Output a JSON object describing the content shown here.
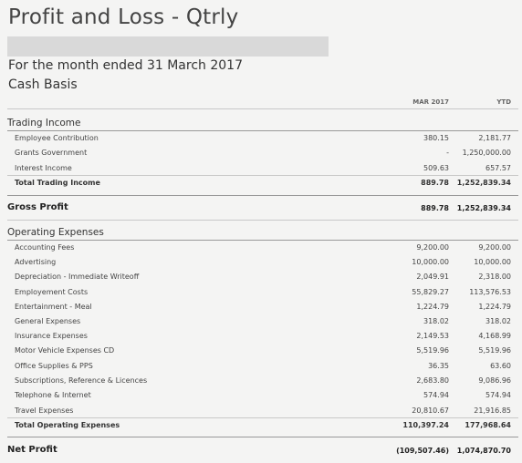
{
  "report": {
    "title": "Profit and Loss - Qtrly",
    "period": "For the month ended 31 March 2017",
    "basis": "Cash Basis",
    "col_month": "MAR 2017",
    "col_ytd": "YTD"
  },
  "trading_income": {
    "heading": "Trading Income",
    "rows": [
      {
        "label": "Employee Contribution",
        "month": "380.15",
        "ytd": "2,181.77"
      },
      {
        "label": "Grants Government",
        "month": "-",
        "ytd": "1,250,000.00"
      },
      {
        "label": "Interest Income",
        "month": "509.63",
        "ytd": "657.57"
      }
    ],
    "total": {
      "label": "Total Trading Income",
      "month": "889.78",
      "ytd": "1,252,839.34"
    }
  },
  "gross_profit": {
    "label": "Gross Profit",
    "month": "889.78",
    "ytd": "1,252,839.34"
  },
  "operating_expenses": {
    "heading": "Operating Expenses",
    "rows": [
      {
        "label": "Accounting Fees",
        "month": "9,200.00",
        "ytd": "9,200.00"
      },
      {
        "label": "Advertising",
        "month": "10,000.00",
        "ytd": "10,000.00"
      },
      {
        "label": "Depreciation - Immediate Writeoff",
        "month": "2,049.91",
        "ytd": "2,318.00"
      },
      {
        "label": "Employement Costs",
        "month": "55,829.27",
        "ytd": "113,576.53"
      },
      {
        "label": "Entertainment - Meal",
        "month": "1,224.79",
        "ytd": "1,224.79"
      },
      {
        "label": "General Expenses",
        "month": "318.02",
        "ytd": "318.02"
      },
      {
        "label": "Insurance Expenses",
        "month": "2,149.53",
        "ytd": "4,168.99"
      },
      {
        "label": "Motor Vehicle Expenses CD",
        "month": "5,519.96",
        "ytd": "5,519.96"
      },
      {
        "label": "Office Supplies & PPS",
        "month": "36.35",
        "ytd": "63.60"
      },
      {
        "label": "Subscriptions, Reference & Licences",
        "month": "2,683.80",
        "ytd": "9,086.96"
      },
      {
        "label": "Telephone & Internet",
        "month": "574.94",
        "ytd": "574.94"
      },
      {
        "label": "Travel Expenses",
        "month": "20,810.67",
        "ytd": "21,916.85"
      }
    ],
    "total": {
      "label": "Total Operating Expenses",
      "month": "110,397.24",
      "ytd": "177,968.64"
    }
  },
  "net_profit": {
    "label": "Net Profit",
    "month": "(109,507.46)",
    "ytd": "1,074,870.70"
  }
}
